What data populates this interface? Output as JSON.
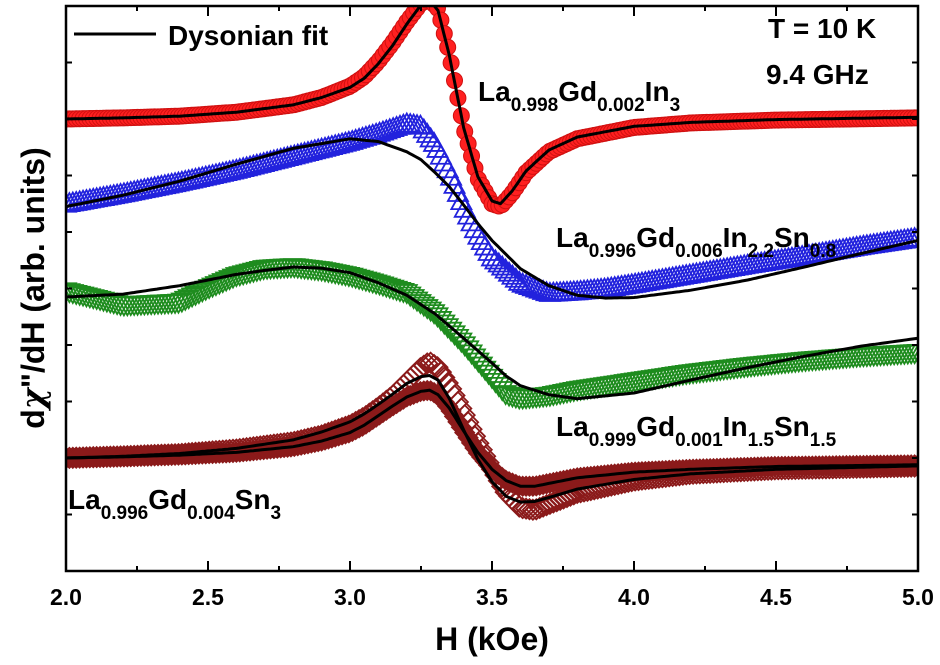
{
  "chart_data": {
    "type": "line",
    "title": "",
    "xlabel": "H (kOe)",
    "ylabel": "dχ\"/dH (arb. units)",
    "ylabel_parts": [
      "d",
      "χ",
      "\"/dH (arb. units)"
    ],
    "xlim": [
      2.0,
      5.0
    ],
    "ylim": [
      0,
      10
    ],
    "x_ticks": [
      "2.0",
      "2.5",
      "3.0",
      "3.5",
      "4.0",
      "4.5",
      "5.0"
    ],
    "grid": false,
    "legend": {
      "position": "top-left",
      "entries": [
        "Dysonian fit"
      ]
    },
    "annotations": [
      {
        "lines": [
          "T = 10 K",
          "9.4 GHz"
        ]
      }
    ],
    "series": [
      {
        "label_parts": [
          [
            "La",
            ""
          ],
          [
            "0.998",
            "sub"
          ],
          [
            "Gd",
            ""
          ],
          [
            "0.002",
            "sub"
          ],
          [
            "In",
            ""
          ],
          [
            "3",
            "sub"
          ]
        ],
        "marker": "circle",
        "color": "#ff2020",
        "edge": "#d01010",
        "x": [
          2.0,
          2.2,
          2.4,
          2.6,
          2.8,
          2.9,
          3.0,
          3.05,
          3.1,
          3.15,
          3.2,
          3.25,
          3.28,
          3.31,
          3.35,
          3.4,
          3.45,
          3.5,
          3.53,
          3.57,
          3.62,
          3.7,
          3.8,
          4.0,
          4.2,
          4.5,
          5.0
        ],
        "values": [
          8.0,
          8.02,
          8.05,
          8.12,
          8.25,
          8.38,
          8.58,
          8.75,
          9.02,
          9.35,
          9.72,
          10.05,
          10.12,
          9.95,
          9.15,
          7.85,
          6.95,
          6.5,
          6.45,
          6.68,
          7.05,
          7.42,
          7.65,
          7.85,
          7.93,
          7.98,
          8.02
        ],
        "fit": [
          8.0,
          8.02,
          8.05,
          8.12,
          8.25,
          8.38,
          8.56,
          8.72,
          8.98,
          9.3,
          9.68,
          10.02,
          10.1,
          9.92,
          9.12,
          7.85,
          6.98,
          6.55,
          6.5,
          6.72,
          7.08,
          7.45,
          7.68,
          7.87,
          7.94,
          7.99,
          8.03
        ]
      },
      {
        "label_parts": [
          [
            "La",
            ""
          ],
          [
            "0.996",
            "sub"
          ],
          [
            "Gd",
            ""
          ],
          [
            "0.006",
            "sub"
          ],
          [
            "In",
            ""
          ],
          [
            "2.2",
            "sub"
          ],
          [
            "Sn",
            ""
          ],
          [
            "0.8",
            "sub"
          ]
        ],
        "marker": "triangle-up",
        "color": "#2222dd",
        "x": [
          2.0,
          2.2,
          2.4,
          2.6,
          2.8,
          3.0,
          3.1,
          3.2,
          3.25,
          3.3,
          3.35,
          3.4,
          3.45,
          3.5,
          3.6,
          3.7,
          3.8,
          3.9,
          4.0,
          4.2,
          4.4,
          4.6,
          4.8,
          5.0
        ],
        "values": [
          6.5,
          6.68,
          6.88,
          7.1,
          7.35,
          7.6,
          7.75,
          7.92,
          7.88,
          7.55,
          7.05,
          6.45,
          5.95,
          5.55,
          5.1,
          4.92,
          4.95,
          5.0,
          5.08,
          5.25,
          5.42,
          5.58,
          5.75,
          5.9
        ],
        "fit": [
          6.45,
          6.65,
          6.9,
          7.2,
          7.48,
          7.65,
          7.6,
          7.42,
          7.28,
          7.05,
          6.8,
          6.48,
          6.15,
          5.85,
          5.35,
          5.05,
          4.88,
          4.83,
          4.84,
          4.97,
          5.15,
          5.38,
          5.62,
          5.85
        ]
      },
      {
        "label_parts": [
          [
            "La",
            ""
          ],
          [
            "0.999",
            "sub"
          ],
          [
            "Gd",
            ""
          ],
          [
            "0.001",
            "sub"
          ],
          [
            "In",
            ""
          ],
          [
            "1.5",
            "sub"
          ],
          [
            "Sn",
            ""
          ],
          [
            "1.5",
            "sub"
          ]
        ],
        "marker": "triangle-down",
        "color": "#1e8c1e",
        "x": [
          2.0,
          2.2,
          2.4,
          2.5,
          2.6,
          2.7,
          2.8,
          2.9,
          3.0,
          3.1,
          3.2,
          3.3,
          3.4,
          3.5,
          3.55,
          3.6,
          3.7,
          3.8,
          4.0,
          4.2,
          4.4,
          4.6,
          4.8,
          5.0
        ],
        "values": [
          4.95,
          4.7,
          4.75,
          5.0,
          5.22,
          5.35,
          5.38,
          5.32,
          5.22,
          5.08,
          4.92,
          4.55,
          4.02,
          3.42,
          3.12,
          3.05,
          3.1,
          3.2,
          3.35,
          3.5,
          3.62,
          3.72,
          3.8,
          3.86
        ],
        "fit": [
          4.85,
          4.9,
          5.05,
          5.15,
          5.25,
          5.32,
          5.38,
          5.36,
          5.28,
          5.1,
          4.88,
          4.55,
          4.12,
          3.68,
          3.45,
          3.28,
          3.12,
          3.05,
          3.15,
          3.38,
          3.6,
          3.8,
          3.98,
          4.12
        ]
      },
      {
        "label_parts": [
          [
            "La",
            ""
          ],
          [
            "0.996",
            "sub"
          ],
          [
            "Gd",
            ""
          ],
          [
            "0.004",
            "sub"
          ],
          [
            "Sn",
            ""
          ],
          [
            "3",
            "sub"
          ]
        ],
        "marker": "diamond",
        "color": "#8b1a1a",
        "x": [
          2.0,
          2.2,
          2.4,
          2.6,
          2.8,
          2.9,
          3.0,
          3.05,
          3.1,
          3.15,
          3.2,
          3.25,
          3.28,
          3.31,
          3.35,
          3.4,
          3.45,
          3.5,
          3.55,
          3.6,
          3.65,
          3.7,
          3.8,
          4.0,
          4.2,
          4.5,
          5.0
        ],
        "values": [
          2.0,
          2.03,
          2.07,
          2.15,
          2.28,
          2.4,
          2.58,
          2.72,
          2.9,
          3.1,
          3.35,
          3.6,
          3.7,
          3.6,
          3.28,
          2.8,
          2.28,
          1.8,
          1.38,
          1.12,
          1.08,
          1.18,
          1.38,
          1.6,
          1.72,
          1.8,
          1.85
        ],
        "fit": [
          2.0,
          2.03,
          2.08,
          2.17,
          2.32,
          2.46,
          2.64,
          2.78,
          2.95,
          3.13,
          3.32,
          3.44,
          3.46,
          3.38,
          3.05,
          2.5,
          1.98,
          1.58,
          1.32,
          1.22,
          1.23,
          1.3,
          1.45,
          1.62,
          1.72,
          1.8,
          1.86
        ],
        "fit2": [
          2.0,
          2.02,
          2.05,
          2.1,
          2.2,
          2.3,
          2.45,
          2.58,
          2.75,
          2.92,
          3.08,
          3.18,
          3.2,
          3.12,
          2.88,
          2.48,
          2.1,
          1.8,
          1.6,
          1.5,
          1.5,
          1.55,
          1.65,
          1.75,
          1.8,
          1.85,
          1.88
        ]
      }
    ]
  }
}
